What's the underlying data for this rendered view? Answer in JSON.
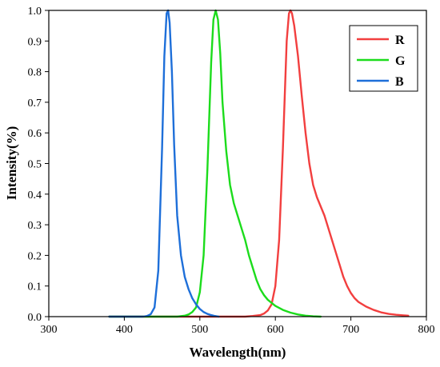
{
  "chart_data": {
    "type": "line",
    "xlabel": "Wavelength(nm)",
    "ylabel": "Intensity(%)",
    "xlim": [
      300,
      800
    ],
    "ylim": [
      0.0,
      1.0
    ],
    "x_ticks": [
      "300",
      "400",
      "500",
      "600",
      "700",
      "800"
    ],
    "y_ticks": [
      "0.0",
      "0.1",
      "0.2",
      "0.3",
      "0.4",
      "0.5",
      "0.6",
      "0.7",
      "0.8",
      "0.9",
      "1.0"
    ],
    "grid": false,
    "legend_position": "top-right",
    "series": [
      {
        "name": "R",
        "color": "#f23f3f",
        "points": [
          [
            380,
            0
          ],
          [
            560,
            0
          ],
          [
            570,
            0.002
          ],
          [
            580,
            0.005
          ],
          [
            585,
            0.01
          ],
          [
            590,
            0.02
          ],
          [
            595,
            0.04
          ],
          [
            600,
            0.1
          ],
          [
            605,
            0.25
          ],
          [
            610,
            0.55
          ],
          [
            615,
            0.9
          ],
          [
            618,
            0.99
          ],
          [
            620,
            1.0
          ],
          [
            622,
            0.99
          ],
          [
            625,
            0.95
          ],
          [
            630,
            0.85
          ],
          [
            635,
            0.72
          ],
          [
            640,
            0.6
          ],
          [
            645,
            0.5
          ],
          [
            650,
            0.43
          ],
          [
            655,
            0.39
          ],
          [
            660,
            0.36
          ],
          [
            665,
            0.33
          ],
          [
            670,
            0.29
          ],
          [
            675,
            0.25
          ],
          [
            680,
            0.21
          ],
          [
            685,
            0.17
          ],
          [
            690,
            0.13
          ],
          [
            695,
            0.1
          ],
          [
            700,
            0.077
          ],
          [
            705,
            0.06
          ],
          [
            710,
            0.048
          ],
          [
            720,
            0.033
          ],
          [
            730,
            0.022
          ],
          [
            740,
            0.014
          ],
          [
            750,
            0.009
          ],
          [
            760,
            0.006
          ],
          [
            770,
            0.004
          ],
          [
            776,
            0.003
          ]
        ]
      },
      {
        "name": "G",
        "color": "#1cdc1c",
        "points": [
          [
            380,
            0
          ],
          [
            470,
            0
          ],
          [
            480,
            0.003
          ],
          [
            485,
            0.007
          ],
          [
            490,
            0.015
          ],
          [
            495,
            0.03
          ],
          [
            500,
            0.08
          ],
          [
            505,
            0.2
          ],
          [
            510,
            0.48
          ],
          [
            515,
            0.83
          ],
          [
            518,
            0.97
          ],
          [
            521,
            1.0
          ],
          [
            524,
            0.97
          ],
          [
            527,
            0.86
          ],
          [
            530,
            0.7
          ],
          [
            535,
            0.54
          ],
          [
            540,
            0.43
          ],
          [
            545,
            0.37
          ],
          [
            550,
            0.33
          ],
          [
            555,
            0.29
          ],
          [
            560,
            0.25
          ],
          [
            565,
            0.2
          ],
          [
            570,
            0.16
          ],
          [
            575,
            0.12
          ],
          [
            580,
            0.09
          ],
          [
            585,
            0.07
          ],
          [
            590,
            0.055
          ],
          [
            600,
            0.035
          ],
          [
            610,
            0.022
          ],
          [
            620,
            0.013
          ],
          [
            630,
            0.007
          ],
          [
            640,
            0.003
          ],
          [
            650,
            0.001
          ],
          [
            660,
            0
          ]
        ]
      },
      {
        "name": "B",
        "color": "#1e6fd9",
        "points": [
          [
            380,
            0
          ],
          [
            425,
            0
          ],
          [
            430,
            0.002
          ],
          [
            435,
            0.008
          ],
          [
            440,
            0.03
          ],
          [
            445,
            0.15
          ],
          [
            450,
            0.55
          ],
          [
            453,
            0.85
          ],
          [
            456,
            0.99
          ],
          [
            458,
            1.0
          ],
          [
            460,
            0.96
          ],
          [
            463,
            0.8
          ],
          [
            466,
            0.56
          ],
          [
            470,
            0.33
          ],
          [
            475,
            0.2
          ],
          [
            480,
            0.13
          ],
          [
            485,
            0.09
          ],
          [
            490,
            0.06
          ],
          [
            495,
            0.04
          ],
          [
            500,
            0.025
          ],
          [
            505,
            0.015
          ],
          [
            510,
            0.009
          ],
          [
            515,
            0.005
          ],
          [
            520,
            0.002
          ],
          [
            525,
            0
          ]
        ]
      }
    ]
  }
}
